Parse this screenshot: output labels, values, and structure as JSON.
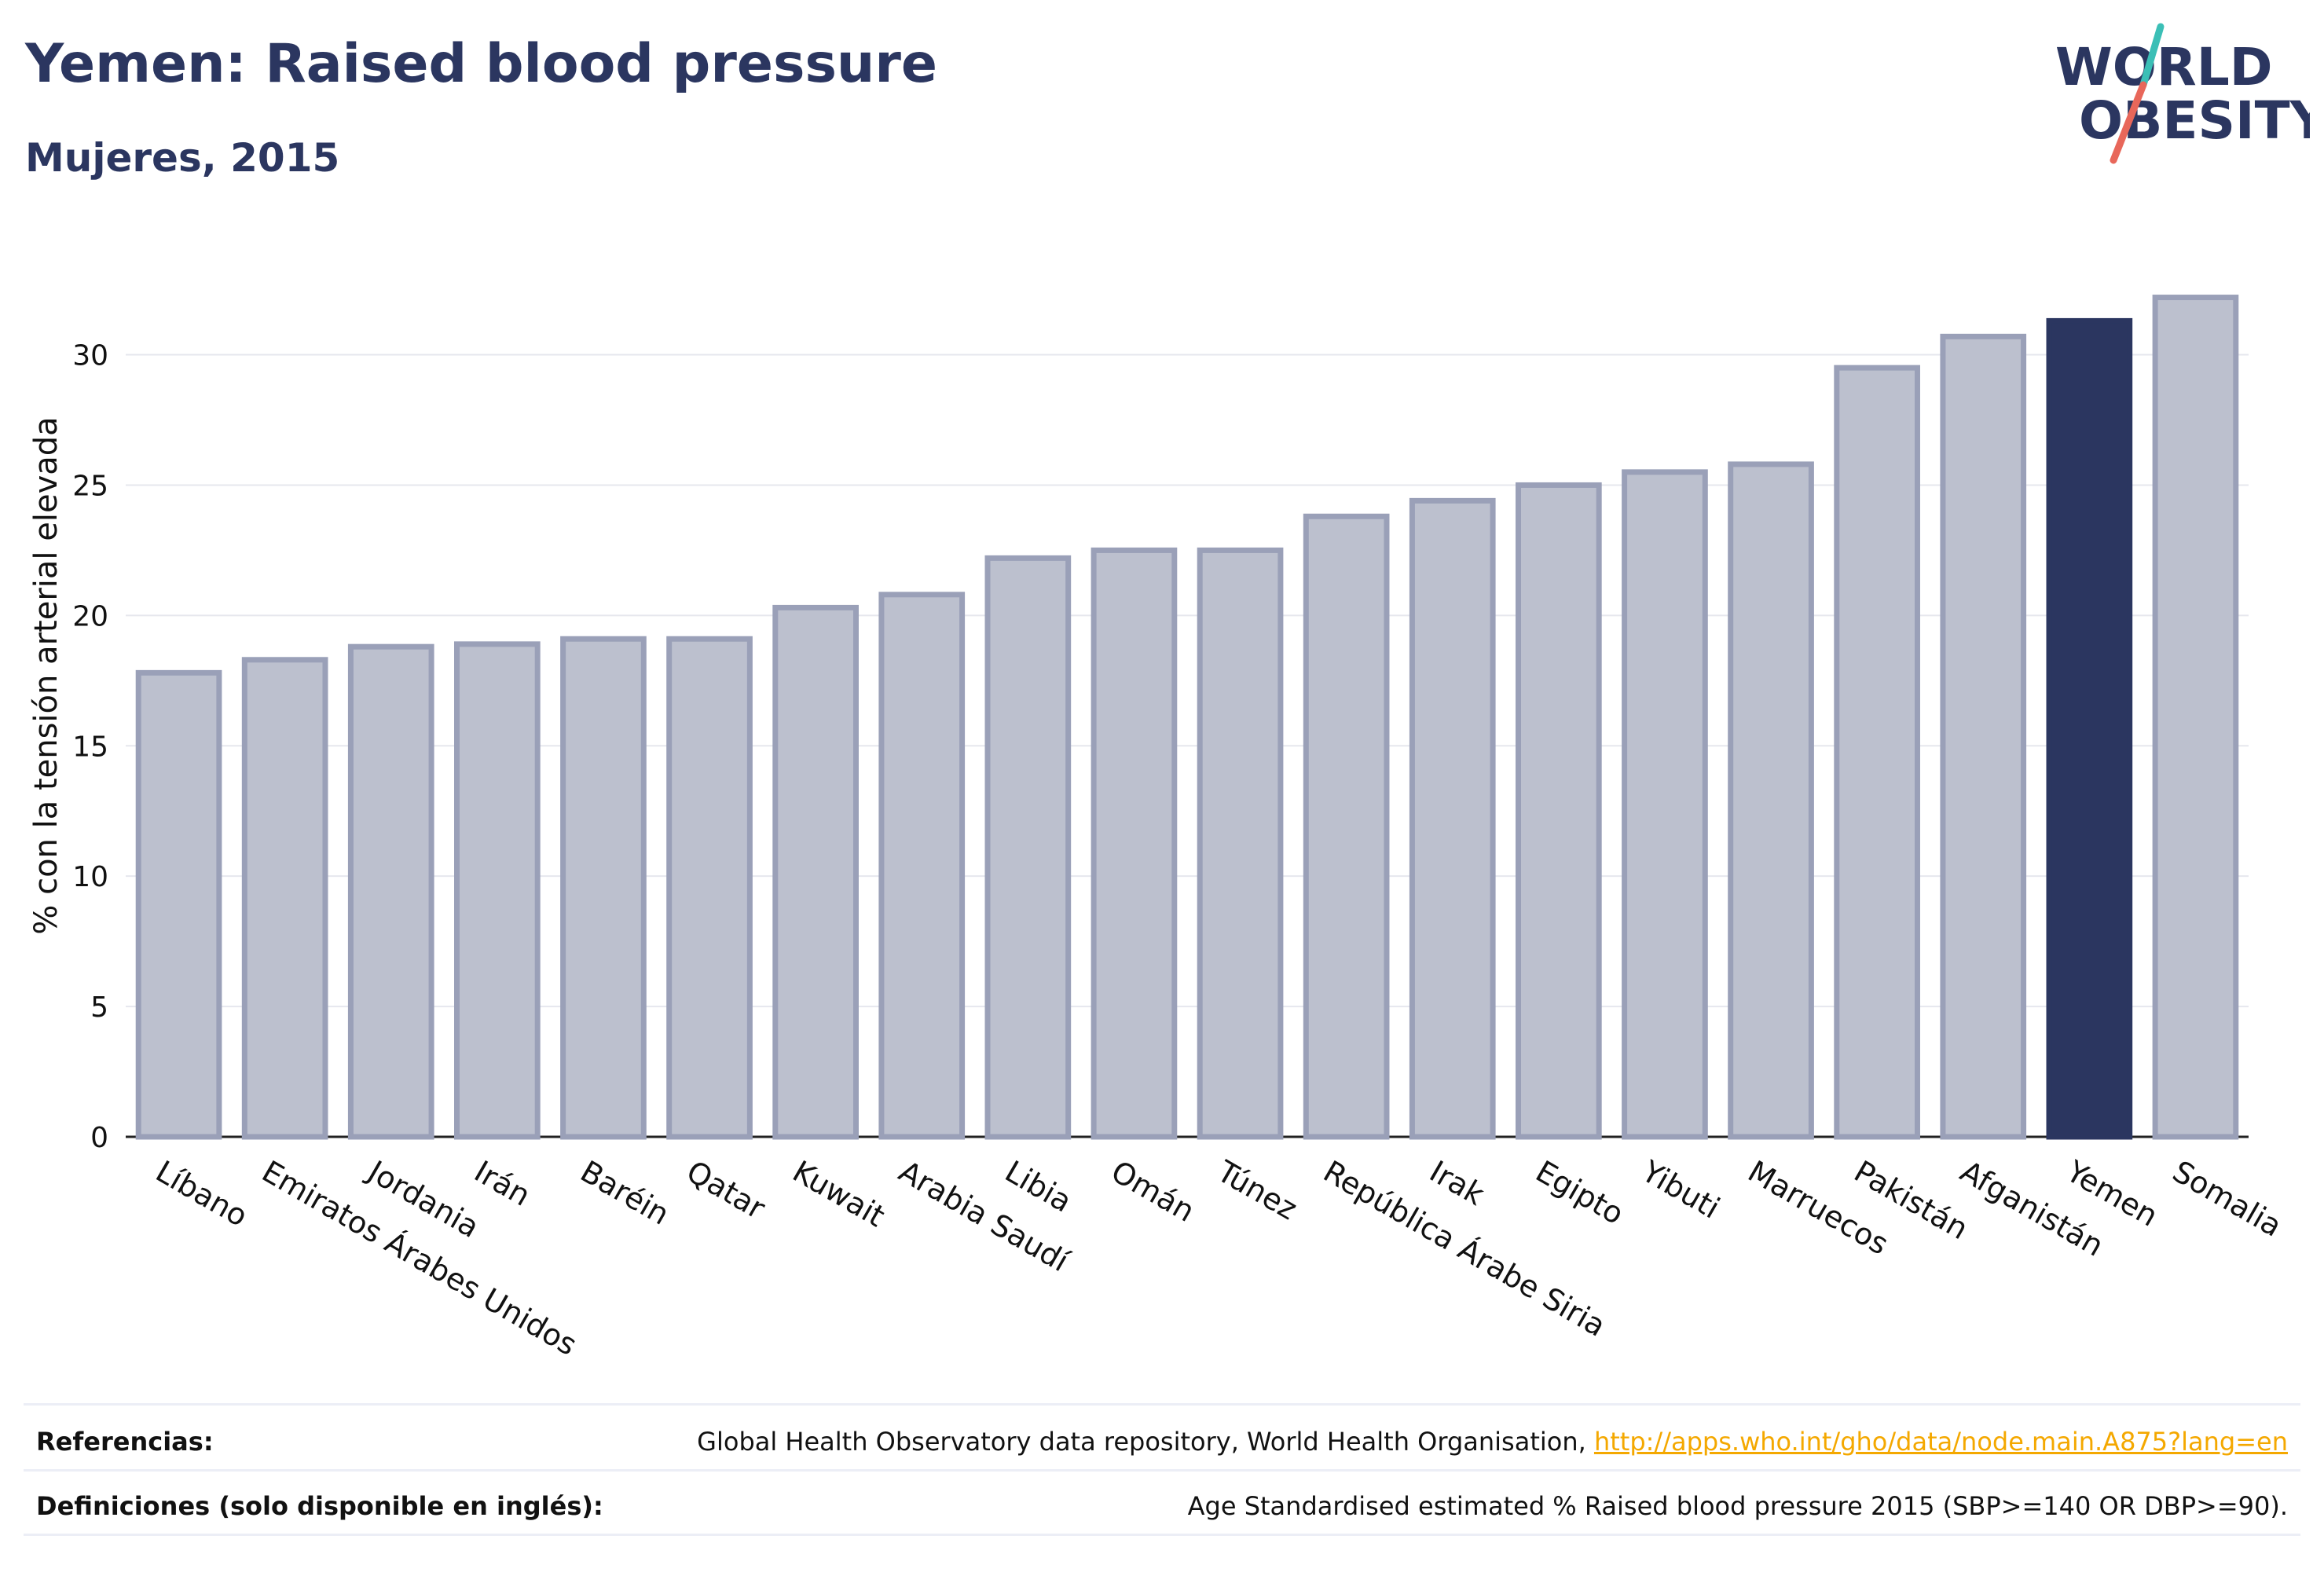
{
  "header": {
    "title": "Yemen: Raised blood pressure",
    "subtitle": "Mujeres, 2015"
  },
  "logo": {
    "line1": "WORLD",
    "line2": "OBESITY",
    "slash_colors": [
      "#3bbfb6",
      "#e8675a"
    ]
  },
  "colors": {
    "bar": "#bcc0ce",
    "bar_border": "#9aa0b8",
    "highlight": "#2b3660",
    "grid": "#e6e7ee",
    "text": "#111111"
  },
  "chart_data": {
    "type": "bar",
    "ylabel": "% con la tensión arterial elevada",
    "ylim": [
      0,
      33
    ],
    "yticks": [
      0,
      5,
      10,
      15,
      20,
      25,
      30
    ],
    "grid": true,
    "highlight": "Yemen",
    "categories": [
      "Líbano",
      "Emiratos Árabes Unidos",
      "Jordania",
      "Irán",
      "Baréin",
      "Qatar",
      "Kuwait",
      "Arabia Saudí",
      "Libia",
      "Omán",
      "Túnez",
      "República Árabe Siria",
      "Irak",
      "Egipto",
      "Yibuti",
      "Marruecos",
      "Pakistán",
      "Afganistán",
      "Yemen",
      "Somalia"
    ],
    "values": [
      17.8,
      18.3,
      18.8,
      18.9,
      19.1,
      19.1,
      20.3,
      20.8,
      22.2,
      22.5,
      22.5,
      23.8,
      24.4,
      25.0,
      25.5,
      25.8,
      29.5,
      30.7,
      31.3,
      32.2
    ]
  },
  "footer": {
    "references_label": "Referencias:",
    "references_text": "Global Health Observatory data repository, World Health Organisation, ",
    "references_link": "http://apps.who.int/gho/data/node.main.A875?lang=en",
    "definitions_label": "Definiciones (solo disponible en inglés):",
    "definitions_text": "Age Standardised estimated % Raised blood pressure 2015 (SBP>=140 OR DBP>=90)."
  }
}
